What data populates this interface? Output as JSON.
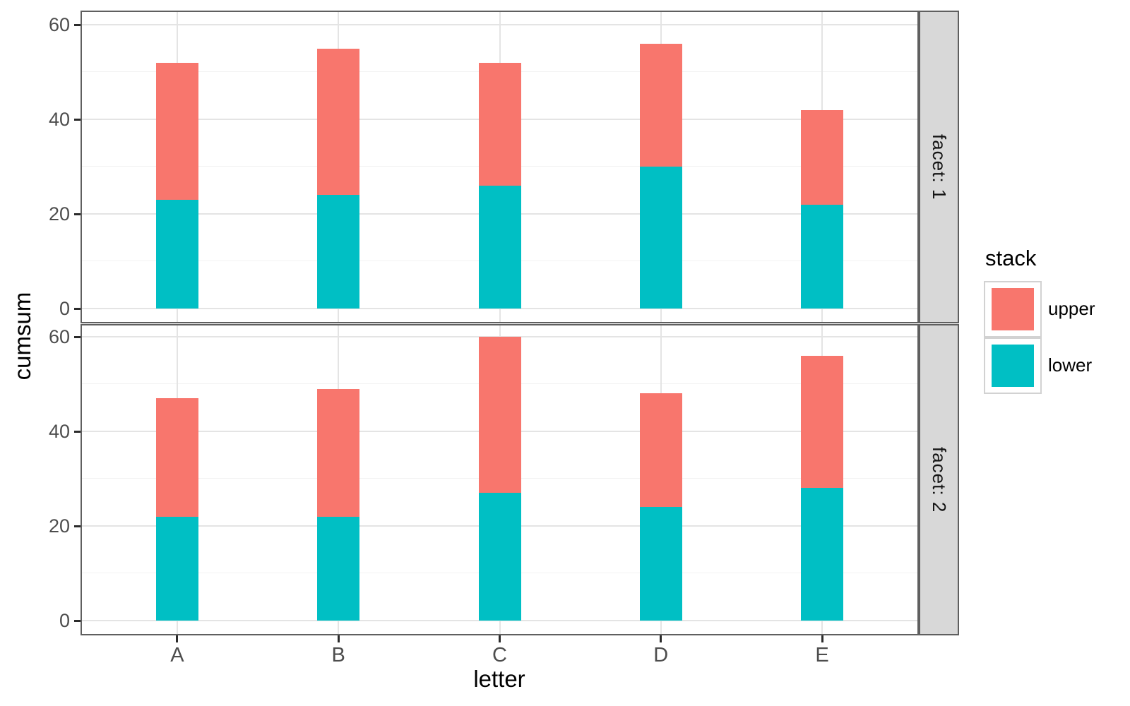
{
  "chart_data": {
    "type": "bar",
    "stacked": true,
    "title": "",
    "xlabel": "letter",
    "ylabel": "cumsum",
    "categories": [
      "A",
      "B",
      "C",
      "D",
      "E"
    ],
    "facets": [
      {
        "label": "facet: 1",
        "series": [
          {
            "name": "lower",
            "values": [
              23,
              24,
              26,
              30,
              22
            ]
          },
          {
            "name": "upper",
            "values": [
              29,
              31,
              26,
              26,
              20
            ]
          }
        ],
        "totals": [
          52,
          55,
          52,
          56,
          42
        ]
      },
      {
        "label": "facet: 2",
        "series": [
          {
            "name": "lower",
            "values": [
              22,
              22,
              27,
              24,
              28
            ]
          },
          {
            "name": "upper",
            "values": [
              25,
              27,
              33,
              24,
              28
            ]
          }
        ],
        "totals": [
          47,
          49,
          60,
          48,
          56
        ]
      }
    ],
    "ylim": [
      0,
      60
    ],
    "yticks": [
      0,
      20,
      40,
      60
    ],
    "yticks_minor": [
      10,
      30,
      50
    ],
    "grid": true,
    "legend": {
      "title": "stack",
      "position": "right",
      "entries": [
        {
          "label": "upper",
          "color": "#F8766D"
        },
        {
          "label": "lower",
          "color": "#00BFC4"
        }
      ]
    },
    "colors": {
      "upper": "#F8766D",
      "lower": "#00BFC4"
    },
    "panel_background": "#ffffff",
    "strip_background": "#d8d8d8",
    "gridline_major_color": "#e4e4e4",
    "gridline_minor_color": "#f2f2f2"
  }
}
